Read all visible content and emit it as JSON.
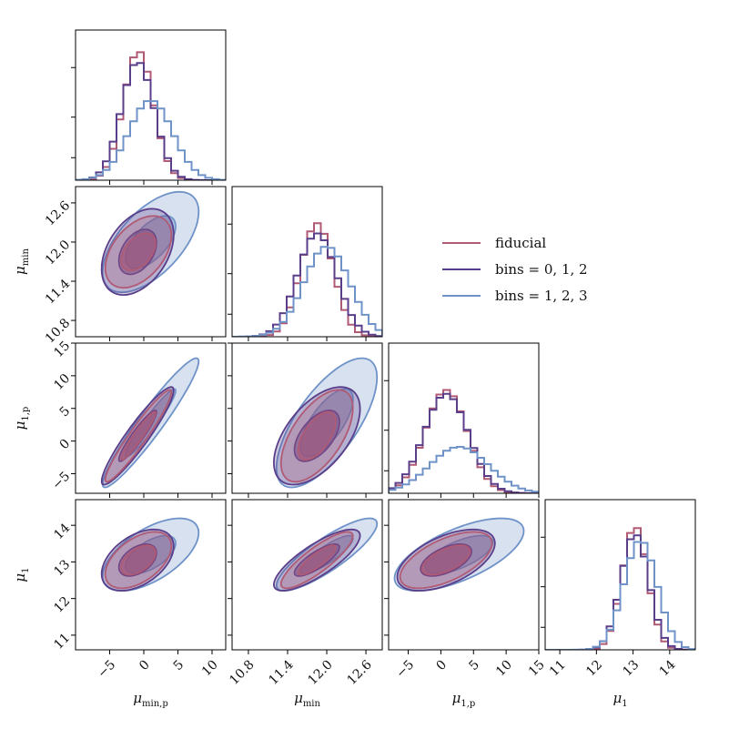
{
  "chart_data": {
    "type": "corner",
    "colors": {
      "fiducial": "#b05a74",
      "bins012": "#5a3e8a",
      "bins123": "#6f93c8"
    },
    "legend": [
      {
        "key": "fiducial",
        "label": "fiducial"
      },
      {
        "key": "bins012",
        "label": "bins = 0, 1, 2"
      },
      {
        "key": "bins123",
        "label": "bins = 1, 2, 3"
      }
    ],
    "parameters": [
      {
        "id": "mu_min_p",
        "label": "μ",
        "sub": "min,p",
        "range": [
          -10,
          12
        ],
        "ticks": [
          -5,
          0,
          5,
          10
        ],
        "tick_labels": [
          "−5",
          "0",
          "5",
          "10"
        ]
      },
      {
        "id": "mu_min",
        "label": "μ",
        "sub": "min",
        "range": [
          10.55,
          12.85
        ],
        "ticks": [
          10.8,
          11.4,
          12.0,
          12.6
        ],
        "tick_labels": [
          "10.8",
          "11.4",
          "12.0",
          "12.6"
        ]
      },
      {
        "id": "mu_1p",
        "label": "μ",
        "sub": "1,p",
        "range": [
          -8,
          15
        ],
        "ticks": [
          -5,
          0,
          5,
          10,
          15
        ],
        "tick_labels": [
          "−5",
          "0",
          "5",
          "10",
          "15"
        ]
      },
      {
        "id": "mu_1",
        "label": "μ",
        "sub": "1",
        "range": [
          10.6,
          14.7
        ],
        "ticks": [
          11,
          12,
          13,
          14
        ],
        "tick_labels": [
          "11",
          "12",
          "13",
          "14"
        ]
      }
    ],
    "row_tick_params": [
      1,
      2,
      3
    ],
    "series": [
      {
        "key": "fiducial",
        "means": [
          -0.8,
          11.85,
          0.8,
          13.05
        ],
        "sds": [
          2.2,
          0.25,
          3.2,
          0.35
        ],
        "corr": [
          [
            1,
            0.45,
            0.95,
            0.5
          ],
          [
            0.45,
            1,
            0.6,
            0.85
          ],
          [
            0.95,
            0.6,
            1,
            0.6
          ],
          [
            0.5,
            0.85,
            0.6,
            1
          ]
        ],
        "hist_peaks": [
          1.0,
          0.88,
          0.8,
          0.96
        ]
      },
      {
        "key": "bins012",
        "means": [
          -0.9,
          11.85,
          0.8,
          13.05
        ],
        "sds": [
          2.4,
          0.3,
          3.4,
          0.38
        ],
        "corr": [
          [
            1,
            0.4,
            0.93,
            0.45
          ],
          [
            0.4,
            1,
            0.55,
            0.8
          ],
          [
            0.93,
            0.55,
            1,
            0.55
          ],
          [
            0.45,
            0.8,
            0.55,
            1
          ]
        ],
        "hist_peaks": [
          0.92,
          0.8,
          0.77,
          0.9
        ]
      },
      {
        "key": "bins123",
        "means": [
          1.0,
          12.0,
          2.8,
          13.2
        ],
        "sds": [
          3.2,
          0.35,
          4.5,
          0.45
        ],
        "corr": [
          [
            1,
            0.6,
            0.95,
            0.6
          ],
          [
            0.6,
            1,
            0.7,
            0.85
          ],
          [
            0.95,
            0.7,
            1,
            0.65
          ],
          [
            0.6,
            0.85,
            0.65,
            1
          ]
        ],
        "hist_peaks": [
          0.62,
          0.7,
          0.36,
          0.85
        ]
      }
    ],
    "contour_levels_sigma": [
      1,
      2
    ]
  }
}
